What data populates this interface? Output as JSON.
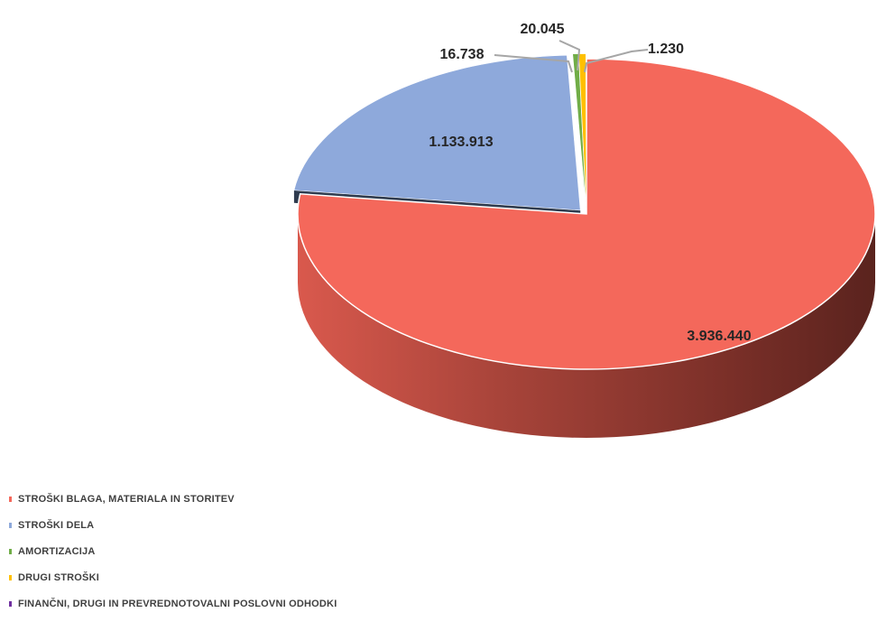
{
  "chart_data": {
    "type": "pie",
    "style": "3d-exploded",
    "title": "",
    "legend_position": "bottom-left",
    "series": [
      {
        "name": "STROŠKI BLAGA, MATERIALA IN STORITEV",
        "value": 3936440,
        "label": "3.936.440",
        "color": "#F4685B"
      },
      {
        "name": "STROŠKI DELA",
        "value": 1133913,
        "label": "1.133.913",
        "color": "#8EA9DB"
      },
      {
        "name": "AMORTIZACIJA",
        "value": 16738,
        "label": "16.738",
        "color": "#70AD47"
      },
      {
        "name": "DRUGI STROŠKI",
        "value": 20045,
        "label": "20.045",
        "color": "#FFC000"
      },
      {
        "name": "FINANČNI, DRUGI IN PREVREDNOTOVALNI POSLOVNI ODHODKI",
        "value": 1230,
        "label": "1.230",
        "color": "#7030A0"
      }
    ]
  }
}
